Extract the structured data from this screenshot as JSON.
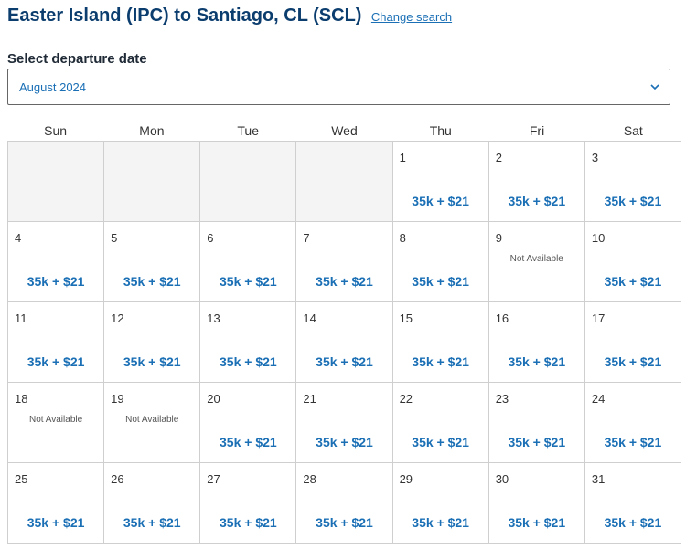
{
  "header": {
    "title": "Easter Island (IPC) to Santiago, CL (SCL)",
    "change_search": "Change search"
  },
  "date_picker": {
    "label": "Select departure date",
    "selected_month": "August 2024"
  },
  "calendar": {
    "weekdays": [
      "Sun",
      "Mon",
      "Tue",
      "Wed",
      "Thu",
      "Fri",
      "Sat"
    ],
    "leading_empty_cells": 4,
    "days": [
      {
        "day": "1",
        "price": "35k + $21"
      },
      {
        "day": "2",
        "price": "35k + $21"
      },
      {
        "day": "3",
        "price": "35k + $21"
      },
      {
        "day": "4",
        "price": "35k + $21"
      },
      {
        "day": "5",
        "price": "35k + $21"
      },
      {
        "day": "6",
        "price": "35k + $21"
      },
      {
        "day": "7",
        "price": "35k + $21"
      },
      {
        "day": "8",
        "price": "35k + $21"
      },
      {
        "day": "9",
        "unavailable": "Not Available"
      },
      {
        "day": "10",
        "price": "35k + $21"
      },
      {
        "day": "11",
        "price": "35k + $21"
      },
      {
        "day": "12",
        "price": "35k + $21"
      },
      {
        "day": "13",
        "price": "35k + $21"
      },
      {
        "day": "14",
        "price": "35k + $21"
      },
      {
        "day": "15",
        "price": "35k + $21"
      },
      {
        "day": "16",
        "price": "35k + $21"
      },
      {
        "day": "17",
        "price": "35k + $21"
      },
      {
        "day": "18",
        "unavailable": "Not Available"
      },
      {
        "day": "19",
        "unavailable": "Not Available"
      },
      {
        "day": "20",
        "price": "35k + $21"
      },
      {
        "day": "21",
        "price": "35k + $21"
      },
      {
        "day": "22",
        "price": "35k + $21"
      },
      {
        "day": "23",
        "price": "35k + $21"
      },
      {
        "day": "24",
        "price": "35k + $21"
      },
      {
        "day": "25",
        "price": "35k + $21"
      },
      {
        "day": "26",
        "price": "35k + $21"
      },
      {
        "day": "27",
        "price": "35k + $21"
      },
      {
        "day": "28",
        "price": "35k + $21"
      },
      {
        "day": "29",
        "price": "35k + $21"
      },
      {
        "day": "30",
        "price": "35k + $21"
      },
      {
        "day": "31",
        "price": "35k + $21"
      }
    ]
  },
  "colors": {
    "title": "#0b3d6e",
    "accent": "#1a6fb5",
    "border": "#cfcfcf",
    "empty_cell": "#f4f4f4"
  },
  "icons": {
    "dropdown": "chevron-down-icon"
  }
}
